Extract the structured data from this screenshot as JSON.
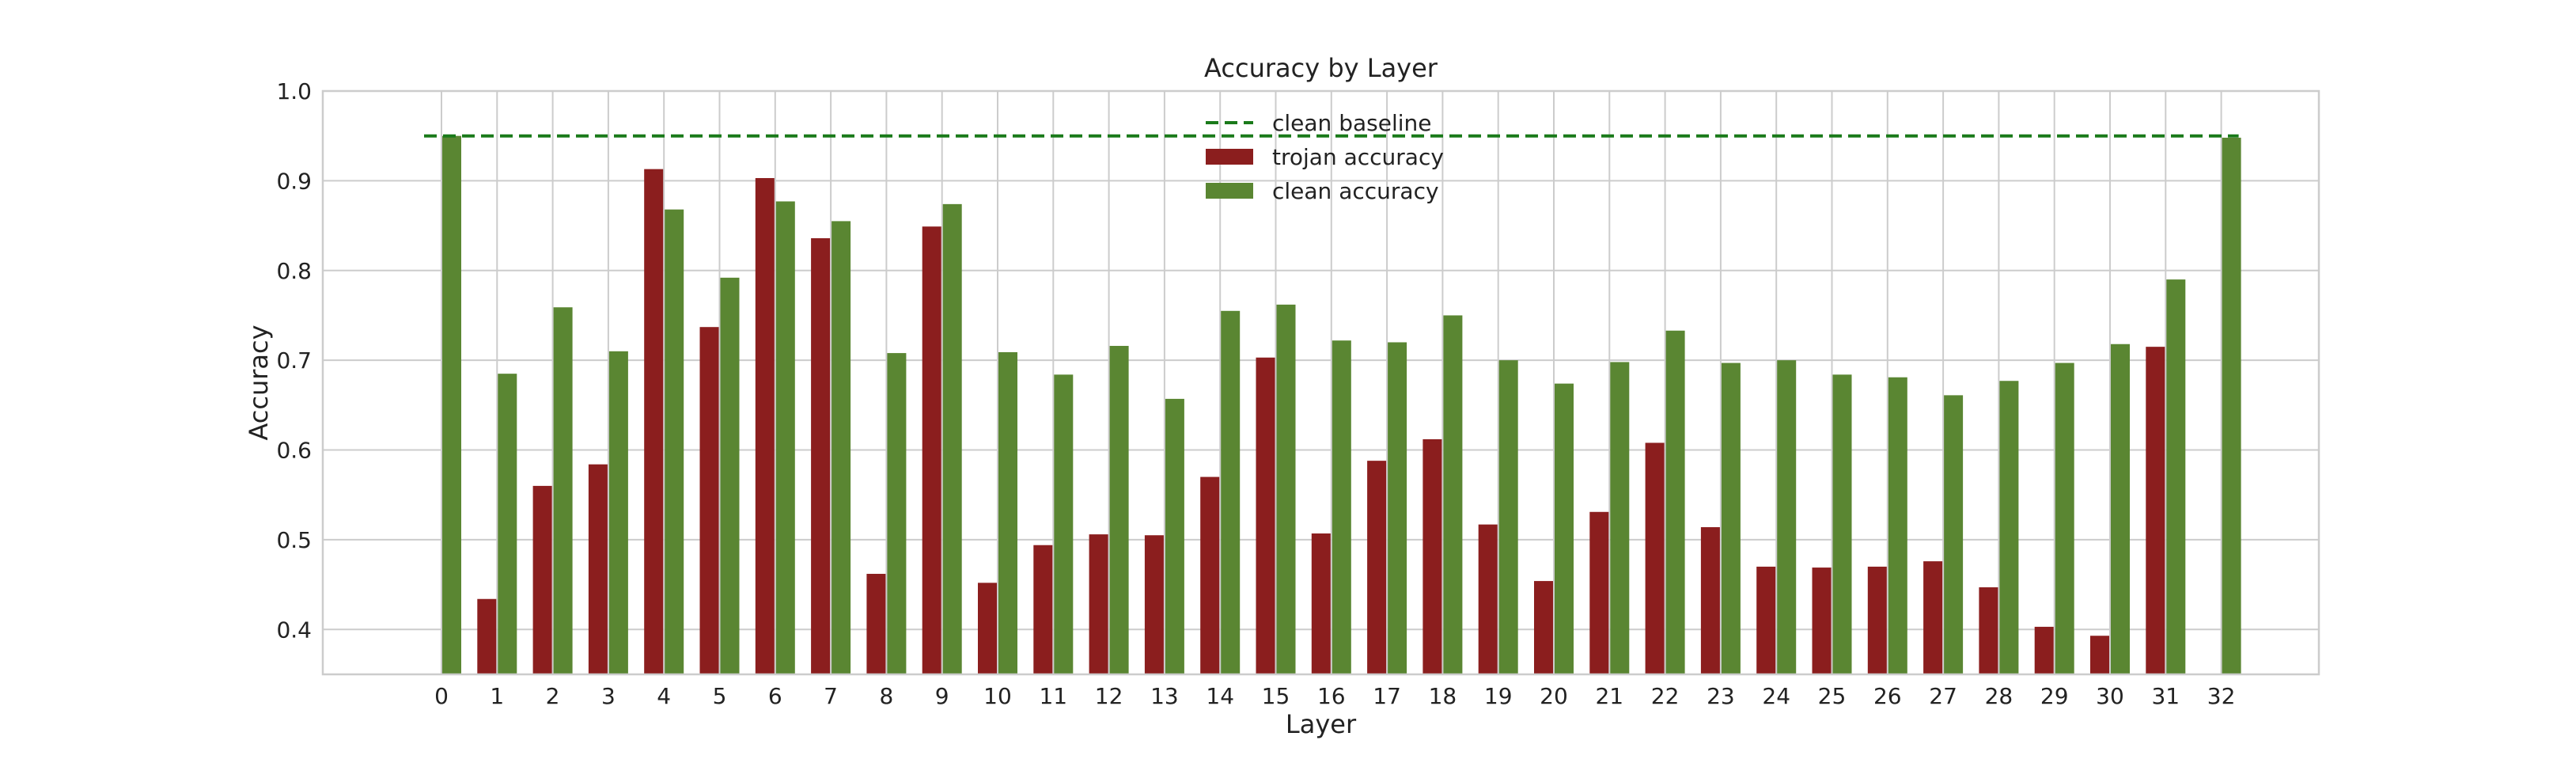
{
  "chart_data": {
    "type": "bar",
    "title": "Accuracy by Layer",
    "xlabel": "Layer",
    "ylabel": "Accuracy",
    "ylim": [
      0.35,
      1.0
    ],
    "yticks": [
      "0.4",
      "0.5",
      "0.6",
      "0.7",
      "0.8",
      "0.9",
      "1.0"
    ],
    "categories": [
      "0",
      "1",
      "2",
      "3",
      "4",
      "5",
      "6",
      "7",
      "8",
      "9",
      "10",
      "11",
      "12",
      "13",
      "14",
      "15",
      "16",
      "17",
      "18",
      "19",
      "20",
      "21",
      "22",
      "23",
      "24",
      "25",
      "26",
      "27",
      "28",
      "29",
      "30",
      "31",
      "32"
    ],
    "series": [
      {
        "name": "trojan accuracy",
        "color": "#8b1e1e",
        "values": [
          null,
          0.434,
          0.56,
          0.584,
          0.913,
          0.737,
          0.903,
          0.836,
          0.462,
          0.849,
          0.452,
          0.494,
          0.506,
          0.505,
          0.57,
          0.703,
          0.507,
          0.588,
          0.612,
          0.517,
          0.454,
          0.531,
          0.608,
          0.514,
          0.47,
          0.469,
          0.47,
          0.476,
          0.447,
          0.403,
          0.393,
          0.715,
          null
        ]
      },
      {
        "name": "clean accuracy",
        "color": "#5a8632",
        "values": [
          0.95,
          0.685,
          0.759,
          0.71,
          0.868,
          0.792,
          0.877,
          0.855,
          0.708,
          0.874,
          0.709,
          0.684,
          0.716,
          0.657,
          0.755,
          0.762,
          0.722,
          0.72,
          0.75,
          0.7,
          0.674,
          0.698,
          0.733,
          0.697,
          0.7,
          0.684,
          0.681,
          0.661,
          0.677,
          0.697,
          0.718,
          0.79,
          0.948
        ]
      }
    ],
    "baseline": {
      "name": "clean baseline",
      "value": 0.95,
      "color": "#1a7a1a",
      "style": "dashed"
    },
    "legend": {
      "placement": "top-center"
    },
    "grid": true
  }
}
